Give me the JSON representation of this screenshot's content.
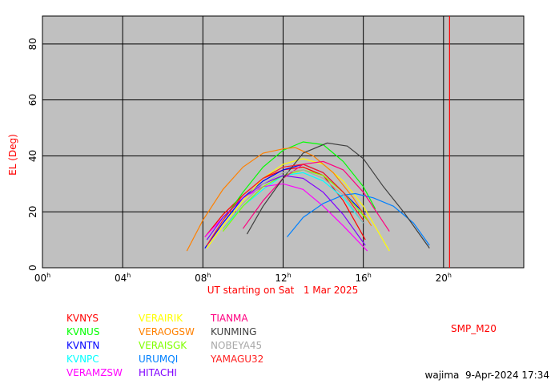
{
  "chart_data": {
    "type": "line",
    "xlabel": "UT starting on Sat   1 Mar 2025",
    "ylabel": "EL (Deg)",
    "xlim": [
      0,
      24
    ],
    "ylim": [
      0,
      90
    ],
    "xticks": [
      {
        "value": 0,
        "label": "00"
      },
      {
        "value": 4,
        "label": "04"
      },
      {
        "value": 8,
        "label": "08"
      },
      {
        "value": 12,
        "label": "12"
      },
      {
        "value": 16,
        "label": "16"
      },
      {
        "value": 20,
        "label": "20"
      }
    ],
    "xtick_suffix": "h",
    "yticks": [
      0,
      20,
      40,
      60,
      80
    ],
    "grid": true,
    "marker_x": 20.3,
    "marker_color": "#ff0000",
    "station_label": "SMP_M20",
    "footer": "wajima  9-Apr-2024 17:34",
    "series": [
      {
        "name": "KVNYS",
        "color": "#ff0000",
        "x": [
          8.1,
          9,
          10,
          11,
          12,
          13,
          14,
          15,
          16.1
        ],
        "values": [
          11,
          19,
          26,
          32,
          35,
          36,
          33,
          24,
          10
        ]
      },
      {
        "name": "KVNUS",
        "color": "#00ff00",
        "x": [
          9,
          10,
          11,
          12,
          13,
          14,
          15,
          16,
          16.6
        ],
        "values": [
          17,
          27,
          36,
          42,
          45,
          44,
          38,
          29,
          21
        ]
      },
      {
        "name": "KVNTN",
        "color": "#0000ff",
        "x": [
          8.1,
          9,
          10,
          11,
          12,
          13,
          14,
          15,
          16.1
        ],
        "values": [
          7,
          16,
          25,
          31,
          35,
          37,
          34,
          27,
          19
        ]
      },
      {
        "name": "KVNPC",
        "color": "#00ffff",
        "x": [
          9,
          10,
          11,
          12,
          13,
          14,
          15,
          16
        ],
        "values": [
          14,
          22,
          28,
          33,
          34,
          31,
          25,
          16
        ]
      },
      {
        "name": "VERAMZSW",
        "color": "#ff00ff",
        "x": [
          8.1,
          9,
          10,
          11,
          12,
          13,
          14,
          15,
          16.2
        ],
        "values": [
          11,
          18,
          25,
          29,
          30,
          28,
          22,
          15,
          6
        ]
      },
      {
        "name": "VERAIRIK",
        "color": "#ffff00",
        "x": [
          8.2,
          9,
          10,
          11,
          12,
          13,
          14,
          15,
          16,
          17.3
        ],
        "values": [
          7,
          15,
          24,
          32,
          37,
          39,
          37,
          31,
          22,
          6
        ]
      },
      {
        "name": "VERAOGSW",
        "color": "#ff8000",
        "x": [
          7.2,
          8,
          9,
          10,
          11,
          12,
          12.6,
          13.5,
          14.5,
          15.5,
          16.4
        ],
        "values": [
          6,
          17,
          28,
          36,
          41,
          42.5,
          43,
          40,
          34,
          25,
          15
        ]
      },
      {
        "name": "VERAISGK",
        "color": "#80ff00",
        "x": [
          9,
          10,
          11,
          12,
          13,
          14,
          15,
          16.2
        ],
        "values": [
          13,
          22,
          29,
          33,
          35,
          33,
          27,
          17
        ]
      },
      {
        "name": "URUMQI",
        "color": "#0080ff",
        "x": [
          12.2,
          13,
          14,
          15,
          15.6,
          16.5,
          17.5,
          18.5,
          19.3
        ],
        "values": [
          11,
          18,
          23,
          26,
          26.5,
          25,
          22,
          16,
          8
        ]
      },
      {
        "name": "HITACHI",
        "color": "#8000ff",
        "x": [
          8.2,
          9,
          10,
          11,
          12,
          13,
          14,
          15,
          16.1
        ],
        "values": [
          10,
          18,
          25,
          30,
          33,
          32,
          27,
          19,
          8
        ]
      },
      {
        "name": "TIANMA",
        "color": "#ff0080",
        "x": [
          10,
          11,
          12,
          13,
          14,
          15,
          16,
          17.3
        ],
        "values": [
          14,
          24,
          32,
          37,
          38,
          35,
          27,
          13
        ]
      },
      {
        "name": "KUNMING",
        "color": "#404040",
        "x": [
          10.2,
          11,
          12,
          13,
          14.2,
          15.2,
          16,
          17,
          18,
          19.3
        ],
        "values": [
          12,
          22,
          32,
          41,
          44.6,
          43.5,
          39,
          29,
          20,
          7
        ]
      },
      {
        "name": "NOBEYA45",
        "color": "#a8a8a8",
        "x": [
          9,
          10,
          11,
          12,
          13,
          14,
          15,
          16
        ],
        "values": [
          14,
          23,
          30,
          34,
          35,
          32,
          26,
          16
        ]
      },
      {
        "name": "YAMAGU32",
        "color": "#ff2020",
        "x": [
          8.2,
          9,
          10,
          11,
          12,
          13,
          14,
          15,
          16
        ],
        "values": [
          8,
          17,
          26,
          32,
          36,
          37,
          34,
          27,
          17
        ]
      }
    ]
  }
}
